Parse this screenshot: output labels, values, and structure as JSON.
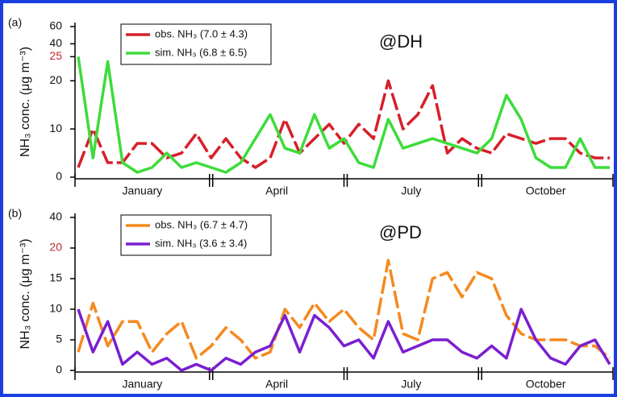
{
  "chart_data": [
    {
      "type": "line",
      "panel_label": "(a)",
      "station": "@DH",
      "ylabel": "NH₃ conc. (μg m⁻³)",
      "quarters": [
        "January",
        "April",
        "July",
        "October"
      ],
      "ylim": [
        0,
        60
      ],
      "yticks": [
        0,
        10,
        20,
        25,
        40,
        60
      ],
      "axis_break": 25,
      "series": [
        {
          "name": "obs. NH₃ (7.0 ± 4.3)",
          "color": "#d6202a",
          "dashed": true,
          "values": [
            2,
            10,
            3,
            3,
            7,
            7,
            4,
            5,
            9,
            4,
            8,
            4,
            2,
            4,
            12,
            5,
            8,
            11,
            7,
            11,
            8,
            20,
            10,
            13,
            19,
            5,
            8,
            6,
            5,
            9,
            8,
            7,
            8,
            8,
            5,
            4,
            4
          ]
        },
        {
          "name": "sim. NH₃ (6.8 ± 6.5)",
          "color": "#3ddc3a",
          "dashed": false,
          "values": [
            25,
            4,
            24,
            3,
            1,
            2,
            5,
            2,
            3,
            2,
            1,
            3,
            8,
            13,
            6,
            5,
            13,
            6,
            8,
            3,
            2,
            12,
            6,
            7,
            8,
            7,
            6,
            5,
            8,
            17,
            12,
            4,
            2,
            2,
            8,
            2,
            2
          ]
        }
      ]
    },
    {
      "type": "line",
      "panel_label": "(b)",
      "station": "@PD",
      "ylabel": "NH₃ conc. (μg m⁻³)",
      "quarters": [
        "January",
        "April",
        "July",
        "October"
      ],
      "ylim": [
        0,
        40
      ],
      "yticks": [
        0,
        5,
        10,
        15,
        20,
        40
      ],
      "axis_break": 20,
      "series": [
        {
          "name": "obs. NH₃ (6.7 ± 4.7)",
          "color": "#f5891f",
          "dashed": true,
          "values": [
            3,
            11,
            4,
            8,
            8,
            3,
            6,
            8,
            2,
            4,
            7,
            5,
            2,
            3,
            10,
            7,
            11,
            8,
            10,
            7,
            5,
            18,
            6,
            5,
            15,
            16,
            12,
            16,
            15,
            9,
            6,
            5,
            5,
            5,
            4,
            4,
            2
          ]
        },
        {
          "name": "sim. NH₃ (3.6 ± 3.4)",
          "color": "#7a1fd0",
          "dashed": false,
          "values": [
            10,
            3,
            8,
            1,
            3,
            1,
            2,
            0,
            1,
            0,
            2,
            1,
            3,
            4,
            9,
            3,
            9,
            7,
            4,
            5,
            2,
            8,
            3,
            4,
            5,
            5,
            3,
            2,
            4,
            2,
            10,
            5,
            2,
            1,
            4,
            5,
            1
          ]
        }
      ]
    }
  ]
}
